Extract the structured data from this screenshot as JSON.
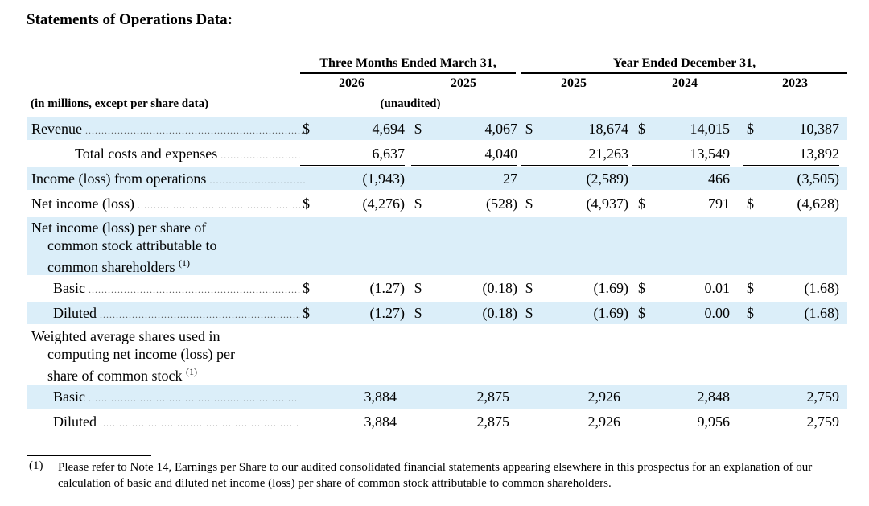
{
  "title": "Statements of Operations Data:",
  "header": {
    "three_months": "Three Months Ended March 31,",
    "year_ended": "Year Ended December 31,",
    "years": [
      "2026",
      "2025",
      "2025",
      "2024",
      "2023"
    ],
    "unit_label": "(in millions, except per share data)",
    "unaudited": "(unaudited)"
  },
  "rows": {
    "revenue": {
      "label": "Revenue",
      "cur": "$",
      "v": [
        "4,694",
        "4,067",
        "18,674",
        "14,015",
        "10,387"
      ]
    },
    "total_costs": {
      "label": "Total costs and expenses",
      "v": [
        "6,637",
        "4,040",
        "21,263",
        "13,549",
        "13,892"
      ]
    },
    "income_ops": {
      "label": "Income (loss) from operations",
      "v": [
        "(1,943)",
        "27",
        "(2,589)",
        "466",
        "(3,505)"
      ]
    },
    "net_income": {
      "label": "Net income (loss)",
      "cur": "$",
      "v": [
        "(4,276)",
        "(528)",
        "(4,937)",
        "791",
        "(4,628)"
      ]
    },
    "eps_heading": {
      "line1": "Net income (loss) per share of",
      "line2": "common stock attributable to",
      "line3": "common shareholders",
      "sup": "(1)"
    },
    "eps_basic": {
      "label": "Basic",
      "cur": "$",
      "v": [
        "(1.27)",
        "(0.18)",
        "(1.69)",
        "0.01",
        "(1.68)"
      ]
    },
    "eps_diluted": {
      "label": "Diluted",
      "cur": "$",
      "v": [
        "(1.27)",
        "(0.18)",
        "(1.69)",
        "0.00",
        "(1.68)"
      ]
    },
    "shares_heading": {
      "line1": "Weighted average shares used in",
      "line2": "computing net income (loss) per",
      "line3": "share of common stock",
      "sup": "(1)"
    },
    "shares_basic": {
      "label": "Basic",
      "v": [
        "3,884",
        "2,875",
        "2,926",
        "2,848",
        "2,759"
      ]
    },
    "shares_diluted": {
      "label": "Diluted",
      "v": [
        "3,884",
        "2,875",
        "2,926",
        "9,956",
        "2,759"
      ]
    }
  },
  "footnote": {
    "number": "(1)",
    "text": "Please refer to Note 14, Earnings per Share to our audited consolidated financial statements appearing elsewhere in this prospectus for an explanation of our calculation of basic and diluted net income (loss) per share of common stock attributable to common shareholders."
  }
}
